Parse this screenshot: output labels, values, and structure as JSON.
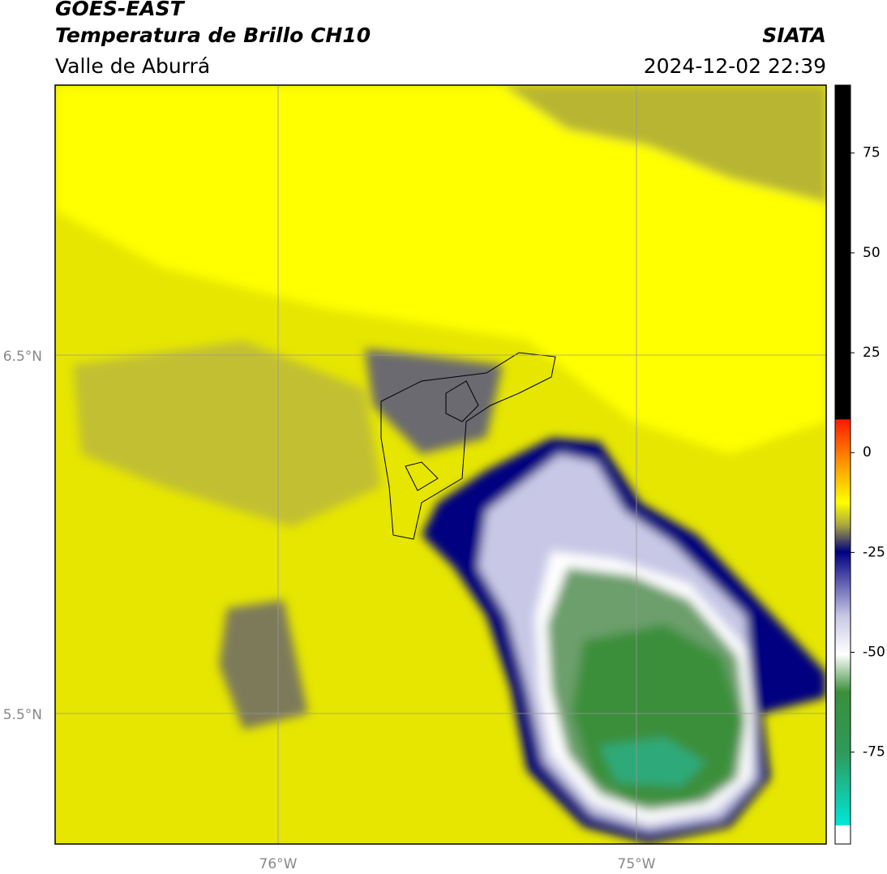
{
  "header": {
    "title": "GOES-EAST",
    "subtitle": "Temperatura de Brillo CH10",
    "region": "Valle de Aburrá",
    "source": "SIATA",
    "datetime": "2024-12-02 22:39"
  },
  "map": {
    "lat_labels": [
      "6.5°N",
      "5.5°N"
    ],
    "lon_labels": [
      "76°W",
      "75°W"
    ]
  },
  "colorbar": {
    "lim": [
      -98,
      92
    ],
    "ticks": [
      75,
      50,
      25,
      0,
      -25,
      -50,
      -75
    ]
  }
}
